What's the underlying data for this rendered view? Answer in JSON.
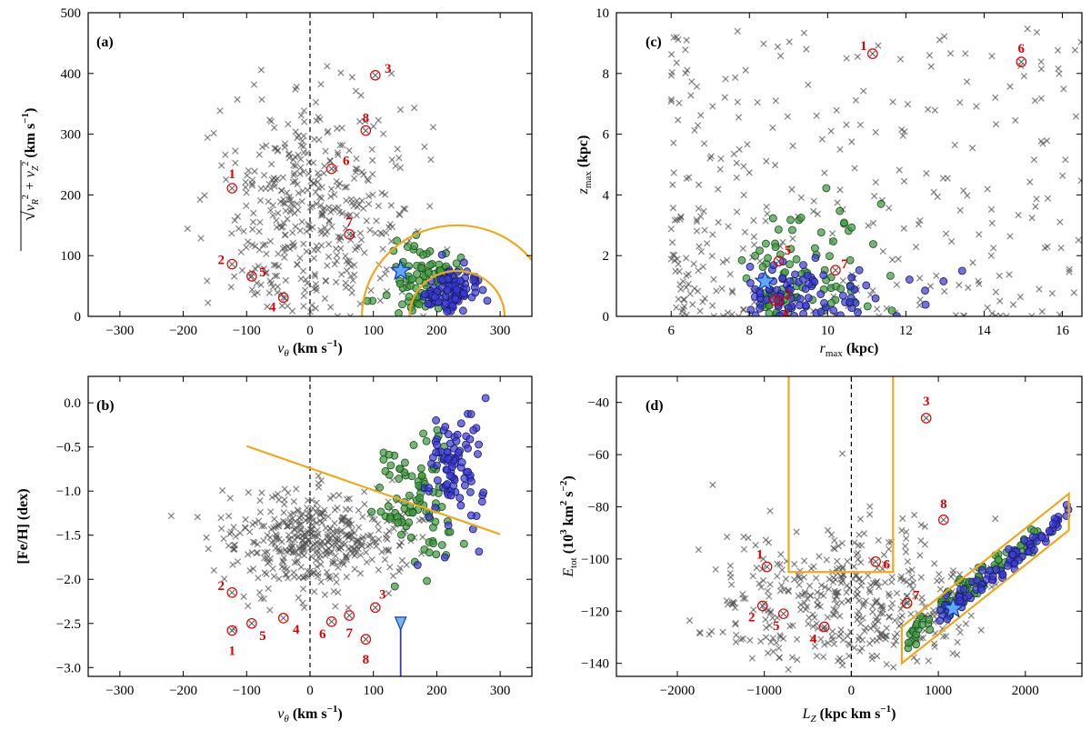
{
  "chart_data": [
    {
      "panel": "a",
      "type": "scatter",
      "label": "(a)",
      "xlabel_main": "v",
      "xlabel_sub": "θ",
      "xlabel_unit": " (km s",
      "xlabel_exp": "−1",
      "xlabel_close": ")",
      "ylabel_pre": "√",
      "ylabel_expr": "v",
      "ylabel_sub1": "R",
      "ylabel_sup": "2",
      "ylabel_plus": " + v",
      "ylabel_sub2": "Z",
      "ylabel_unit": " (km s",
      "ylabel_exp": "−1",
      "ylabel_close": ")",
      "xlim": [
        -350,
        350
      ],
      "ylim": [
        0,
        500
      ],
      "xticks": [
        -300,
        -200,
        -100,
        0,
        100,
        200,
        300
      ],
      "yticks": [
        0,
        100,
        200,
        300,
        400,
        500
      ],
      "grid": false,
      "star": [
        143,
        75
      ],
      "numbered_stars": [
        {
          "id": "1",
          "x": -123,
          "y": 211
        },
        {
          "id": "2",
          "x": -123,
          "y": 86
        },
        {
          "id": "3",
          "x": 103,
          "y": 397
        },
        {
          "id": "4",
          "x": -42,
          "y": 31
        },
        {
          "id": "5",
          "x": -92,
          "y": 66
        },
        {
          "id": "6",
          "x": 34,
          "y": 243
        },
        {
          "id": "7",
          "x": 62,
          "y": 135
        },
        {
          "id": "8",
          "x": 88,
          "y": 306
        }
      ],
      "selection_circles": [
        {
          "center_x": 232,
          "center_y": 0,
          "radius": 150
        },
        {
          "center_x": 232,
          "center_y": 0,
          "radius": 75
        }
      ]
    },
    {
      "panel": "b",
      "type": "scatter",
      "label": "(b)",
      "xlabel_main": "v",
      "xlabel_sub": "θ",
      "xlabel_unit": " (km s",
      "xlabel_exp": "−1",
      "xlabel_close": ")",
      "ylabel": "[Fe/H] (dex)",
      "xlim": [
        -350,
        350
      ],
      "ylim": [
        -3.1,
        0.3
      ],
      "xticks": [
        -300,
        -200,
        -100,
        0,
        100,
        200,
        300
      ],
      "yticks": [
        -3.0,
        -2.5,
        -2.0,
        -1.5,
        -1.0,
        -0.5,
        0.0
      ],
      "ytick_labels": [
        "−3.0",
        "−2.5",
        "−2.0",
        "−1.5",
        "−1.0",
        "−0.5",
        "0.0"
      ],
      "grid": false,
      "dividing_line": [
        [
          -100,
          -0.49
        ],
        [
          300,
          -1.49
        ]
      ],
      "sun_marker": {
        "x": 143,
        "y": -2.47
      },
      "numbered_stars": [
        {
          "id": "1",
          "x": -123,
          "y": -2.58
        },
        {
          "id": "2",
          "x": -123,
          "y": -2.15
        },
        {
          "id": "3",
          "x": 103,
          "y": -2.32
        },
        {
          "id": "4",
          "x": -42,
          "y": -2.44
        },
        {
          "id": "5",
          "x": -92,
          "y": -2.5
        },
        {
          "id": "6",
          "x": 34,
          "y": -2.48
        },
        {
          "id": "7",
          "x": 62,
          "y": -2.41
        },
        {
          "id": "8",
          "x": 88,
          "y": -2.68
        }
      ]
    },
    {
      "panel": "c",
      "type": "scatter",
      "label": "(c)",
      "xlabel_main": "r",
      "xlabel_sub": "max",
      "xlabel_unit": " (kpc)",
      "ylabel_main": "z",
      "ylabel_sub": "max",
      "ylabel_unit": " (kpc)",
      "xlim": [
        4.6,
        16.5
      ],
      "ylim": [
        0,
        10
      ],
      "xticks": [
        6,
        8,
        10,
        12,
        14,
        16
      ],
      "yticks": [
        0,
        2,
        4,
        6,
        8,
        10
      ],
      "grid": false,
      "star": [
        8.4,
        1.15
      ],
      "numbered_stars": [
        {
          "id": "1",
          "x": 11.15,
          "y": 8.65
        },
        {
          "id": "2",
          "x": 8.75,
          "y": 0.52
        },
        {
          "id": "4",
          "x": 8.65,
          "y": 0.52
        },
        {
          "id": "5",
          "x": 8.75,
          "y": 1.82
        },
        {
          "id": "6",
          "x": 14.95,
          "y": 8.38
        },
        {
          "id": "7",
          "x": 10.2,
          "y": 1.52
        }
      ]
    },
    {
      "panel": "d",
      "type": "scatter",
      "label": "(d)",
      "xlabel_main": "L",
      "xlabel_sub": "Z",
      "xlabel_unit": " (kpc km s",
      "xlabel_exp": "−1",
      "xlabel_close": ")",
      "ylabel_main": "E",
      "ylabel_sub": "tot",
      "ylabel_unit": " (10",
      "ylabel_exp1": "3",
      "ylabel_unit2": " km",
      "ylabel_exp2": "2",
      "ylabel_unit3": " s",
      "ylabel_exp3": "−2",
      "ylabel_close": ")",
      "xlim": [
        -2700,
        2650
      ],
      "ylim": [
        -145,
        -30
      ],
      "xticks": [
        -2000,
        -1000,
        0,
        1000,
        2000
      ],
      "xtick_labels": [
        "−2000",
        "−1000",
        "0",
        "1000",
        "2000"
      ],
      "yticks": [
        -140,
        -120,
        -100,
        -80,
        -60,
        -40
      ],
      "ytick_labels": [
        "−140",
        "−120",
        "−100",
        "−80",
        "−60",
        "−40"
      ],
      "grid": false,
      "star": [
        1170,
        -119
      ],
      "numbered_stars": [
        {
          "id": "1",
          "x": -970,
          "y": -103
        },
        {
          "id": "2",
          "x": -1020,
          "y": -118
        },
        {
          "id": "3",
          "x": 860,
          "y": -46
        },
        {
          "id": "4",
          "x": -310,
          "y": -126
        },
        {
          "id": "5",
          "x": -780,
          "y": -121
        },
        {
          "id": "6",
          "x": 280,
          "y": -101
        },
        {
          "id": "7",
          "x": 640,
          "y": -117
        },
        {
          "id": "8",
          "x": 1060,
          "y": -85
        }
      ],
      "box_region": [
        [
          -720,
          -30
        ],
        [
          -720,
          -105
        ],
        [
          480,
          -105
        ],
        [
          480,
          -30
        ]
      ],
      "parallelogram_region": [
        [
          580,
          -140
        ],
        [
          580,
          -126
        ],
        [
          2500,
          -75
        ],
        [
          2500,
          -89
        ]
      ]
    }
  ],
  "panel_a_tick_labels": [
    "−300",
    "−200",
    "−100",
    "0",
    "100",
    "200",
    "300"
  ],
  "panel_c_xtick_labels": [
    "6",
    "8",
    "10",
    "12",
    "14",
    "16"
  ],
  "panel_c_ytick_labels": [
    "0",
    "2",
    "4",
    "6",
    "8",
    "10"
  ],
  "panel_a_ytick_labels": [
    "0",
    "100",
    "200",
    "300",
    "400",
    "500"
  ]
}
